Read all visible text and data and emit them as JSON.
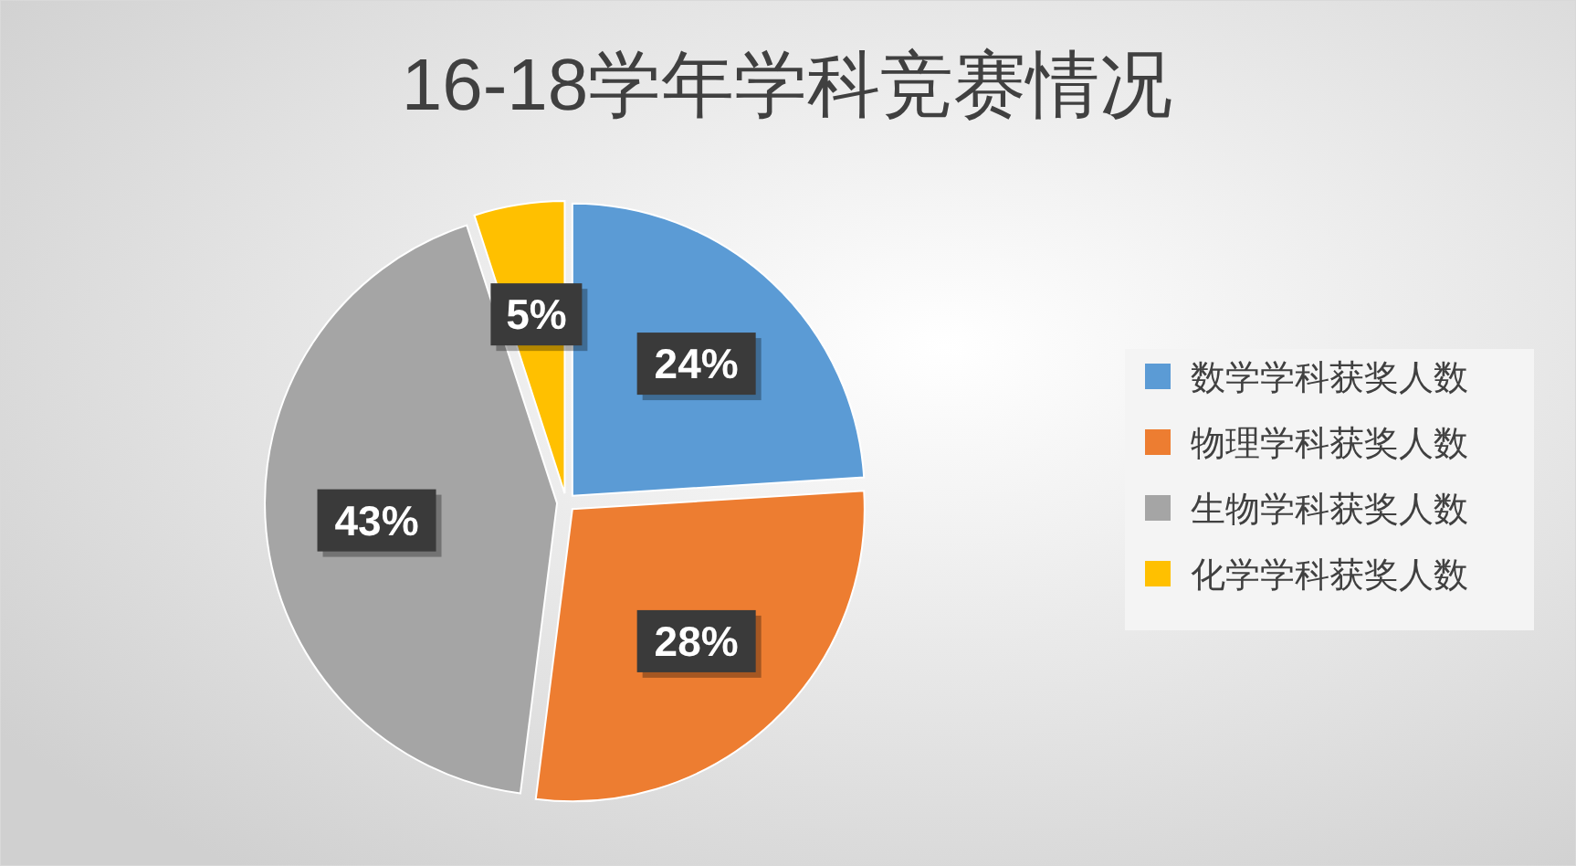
{
  "chart_data": {
    "type": "pie",
    "title": "16-18学年学科竞赛情况",
    "categories": [
      "数学学科获奖人数",
      "物理学科获奖人数",
      "生物学科获奖人数",
      "化学学科获奖人数"
    ],
    "values": [
      24,
      28,
      43,
      5
    ],
    "colors": [
      "#5b9bd5",
      "#ed7d31",
      "#a5a5a5",
      "#ffc000"
    ],
    "value_labels": [
      "24%",
      "28%",
      "43%",
      "5%"
    ],
    "legend": "right"
  }
}
